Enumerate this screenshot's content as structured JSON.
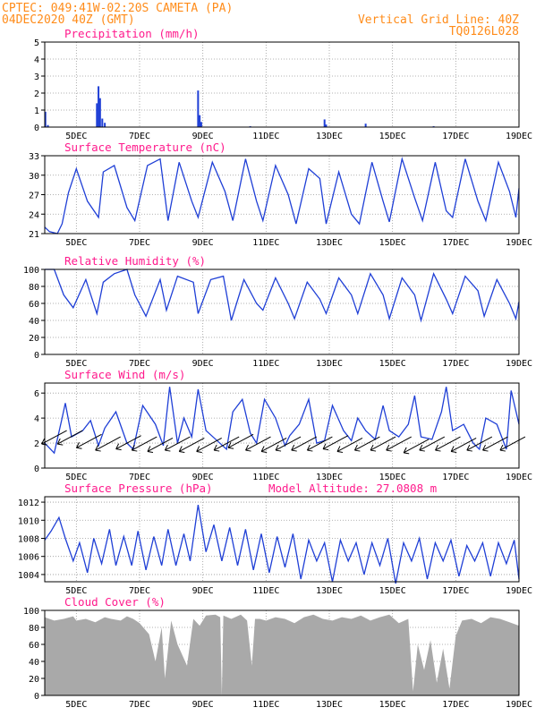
{
  "header": {
    "station": "CPTEC:   049:41W-02:20S   CAMETA (PA)",
    "init": "04DEC2020 40Z (GMT)",
    "grid_line": "Vertical Grid Line: 40Z",
    "code": "TQ0126L028"
  },
  "x_axis": {
    "start_day": 4.0,
    "end_day": 19.0,
    "tick_days": [
      5,
      7,
      9,
      11,
      13,
      15,
      17,
      19
    ],
    "tick_labels": [
      "5DEC",
      "7DEC",
      "9DEC",
      "11DEC",
      "13DEC",
      "15DEC",
      "17DEC",
      "19DEC"
    ]
  },
  "colors": {
    "line": "#1f3fd6",
    "cloud": "#a9a9a9",
    "precip": "#1f3fd6",
    "header": "#ff8c1a",
    "title": "#ff1a8c",
    "wind_arrow": "#000000"
  },
  "chart_data": [
    {
      "id": "precip",
      "type": "bar",
      "title": "Precipitation (mm/h)",
      "ylim": [
        0,
        5
      ],
      "yticks": [
        0,
        1,
        2,
        3,
        4,
        5
      ],
      "points": [
        [
          4.02,
          0.9
        ],
        [
          4.1,
          0.12
        ],
        [
          5.65,
          1.4
        ],
        [
          5.7,
          2.4
        ],
        [
          5.75,
          1.7
        ],
        [
          5.82,
          0.5
        ],
        [
          5.9,
          0.25
        ],
        [
          8.85,
          2.15
        ],
        [
          8.9,
          0.7
        ],
        [
          8.95,
          0.3
        ],
        [
          12.85,
          0.45
        ],
        [
          12.9,
          0.15
        ],
        [
          14.15,
          0.2
        ],
        [
          10.5,
          0.05
        ],
        [
          16.3,
          0.05
        ]
      ]
    },
    {
      "id": "temp",
      "type": "line",
      "title": "Surface Temperature (nC)",
      "ylim": [
        21,
        33
      ],
      "yticks": [
        21,
        24,
        27,
        30,
        33
      ],
      "x": [
        4.0,
        4.15,
        4.4,
        4.55,
        4.75,
        5.0,
        5.35,
        5.7,
        5.85,
        6.2,
        6.6,
        6.85,
        7.25,
        7.65,
        7.9,
        8.25,
        8.65,
        8.85,
        9.3,
        9.7,
        9.95,
        10.35,
        10.7,
        10.9,
        11.3,
        11.7,
        11.95,
        12.35,
        12.7,
        12.9,
        13.3,
        13.7,
        13.95,
        14.35,
        14.7,
        14.9,
        15.3,
        15.7,
        15.95,
        16.35,
        16.7,
        16.9,
        17.3,
        17.7,
        17.95,
        18.35,
        18.7,
        18.9,
        19.0
      ],
      "y": [
        22.0,
        21.3,
        21.0,
        22.5,
        27.3,
        31.0,
        26.0,
        23.5,
        30.5,
        31.5,
        25.0,
        23.0,
        31.5,
        32.5,
        23.0,
        32.0,
        26.0,
        23.5,
        32.0,
        27.5,
        23.0,
        32.5,
        26.0,
        23.0,
        31.5,
        27.0,
        22.5,
        31.0,
        29.5,
        22.5,
        30.5,
        24.0,
        22.5,
        32.0,
        26.0,
        22.8,
        32.5,
        26.5,
        23.0,
        32.0,
        24.5,
        23.5,
        32.5,
        26.0,
        23.0,
        32.0,
        27.5,
        23.5,
        28.0
      ]
    },
    {
      "id": "rh",
      "type": "line",
      "title": "Relative Humidity (%)",
      "ylim": [
        0,
        100
      ],
      "yticks": [
        0,
        20,
        40,
        60,
        80,
        100
      ],
      "x": [
        4.0,
        4.3,
        4.6,
        4.9,
        5.3,
        5.65,
        5.85,
        6.2,
        6.6,
        6.85,
        7.2,
        7.65,
        7.85,
        8.2,
        8.7,
        8.85,
        9.25,
        9.65,
        9.9,
        10.3,
        10.7,
        10.9,
        11.3,
        11.7,
        11.9,
        12.3,
        12.7,
        12.9,
        13.3,
        13.7,
        13.9,
        14.3,
        14.7,
        14.9,
        15.3,
        15.7,
        15.9,
        16.3,
        16.7,
        16.9,
        17.3,
        17.7,
        17.9,
        18.3,
        18.7,
        18.9,
        19.0
      ],
      "y": [
        100,
        100,
        70,
        55,
        88,
        48,
        85,
        95,
        100,
        70,
        45,
        88,
        52,
        92,
        85,
        48,
        88,
        92,
        40,
        88,
        60,
        52,
        90,
        60,
        42,
        85,
        65,
        48,
        90,
        70,
        48,
        95,
        70,
        42,
        90,
        70,
        40,
        95,
        65,
        48,
        92,
        75,
        45,
        88,
        60,
        42,
        62
      ]
    },
    {
      "id": "wind",
      "type": "line",
      "title": "Surface Wind (m/s)",
      "ylim": [
        0,
        6.8
      ],
      "yticks": [
        0,
        2,
        4,
        6
      ],
      "x": [
        4.0,
        4.3,
        4.55,
        4.65,
        4.85,
        5.2,
        5.45,
        5.7,
        5.9,
        6.25,
        6.6,
        6.8,
        7.1,
        7.5,
        7.75,
        7.95,
        8.2,
        8.4,
        8.65,
        8.85,
        9.1,
        9.45,
        9.75,
        9.95,
        10.25,
        10.5,
        10.7,
        10.95,
        11.3,
        11.6,
        11.75,
        12.05,
        12.35,
        12.6,
        12.85,
        13.1,
        13.45,
        13.7,
        13.9,
        14.15,
        14.45,
        14.7,
        14.9,
        15.2,
        15.5,
        15.7,
        15.9,
        16.25,
        16.55,
        16.7,
        16.9,
        17.25,
        17.55,
        17.75,
        17.95,
        18.3,
        18.6,
        18.75,
        19.0
      ],
      "y": [
        2.0,
        1.2,
        4.0,
        5.2,
        2.5,
        3.0,
        3.8,
        1.8,
        3.2,
        4.5,
        2.0,
        1.5,
        5.0,
        3.5,
        1.8,
        6.5,
        2.0,
        4.0,
        2.5,
        6.3,
        3.0,
        2.2,
        1.5,
        4.5,
        5.5,
        2.8,
        2.0,
        5.5,
        4.0,
        1.8,
        2.6,
        3.5,
        5.5,
        2.0,
        2.2,
        5.0,
        3.0,
        2.2,
        4.0,
        3.0,
        2.3,
        5.0,
        3.0,
        2.5,
        3.5,
        5.8,
        2.5,
        2.3,
        4.5,
        6.5,
        3.0,
        3.5,
        2.0,
        1.5,
        4.0,
        3.5,
        1.5,
        6.2,
        3.5
      ],
      "arrows": [
        [
          4.3,
          2.5
        ],
        [
          4.8,
          2.5
        ],
        [
          5.4,
          2.2
        ],
        [
          6.0,
          2.0
        ],
        [
          6.65,
          2.1
        ],
        [
          7.15,
          2.0
        ],
        [
          7.65,
          1.9
        ],
        [
          8.2,
          2.0
        ],
        [
          8.65,
          1.9
        ],
        [
          9.2,
          1.9
        ],
        [
          9.75,
          2.0
        ],
        [
          10.2,
          2.2
        ],
        [
          10.75,
          2.0
        ],
        [
          11.25,
          1.9
        ],
        [
          11.7,
          2.0
        ],
        [
          12.2,
          2.0
        ],
        [
          12.7,
          2.0
        ],
        [
          13.2,
          2.1
        ],
        [
          13.65,
          1.9
        ],
        [
          14.2,
          2.0
        ],
        [
          14.7,
          2.0
        ],
        [
          15.2,
          2.0
        ],
        [
          15.75,
          1.8
        ],
        [
          16.25,
          2.0
        ],
        [
          16.75,
          2.0
        ],
        [
          17.25,
          1.9
        ],
        [
          17.75,
          2.0
        ],
        [
          18.25,
          2.0
        ],
        [
          18.8,
          2.0
        ]
      ]
    },
    {
      "id": "pres",
      "type": "line",
      "title": "Surface Pressure (hPa)",
      "altitude_label": "Model Altitude: 27.0808 m",
      "ylim": [
        1003.2,
        1012.6
      ],
      "yticks": [
        1004,
        1006,
        1008,
        1010,
        1012
      ],
      "x": [
        4.0,
        4.2,
        4.45,
        4.65,
        4.9,
        5.1,
        5.35,
        5.55,
        5.8,
        6.05,
        6.25,
        6.5,
        6.75,
        6.95,
        7.2,
        7.45,
        7.7,
        7.9,
        8.15,
        8.4,
        8.6,
        8.85,
        9.1,
        9.35,
        9.6,
        9.85,
        10.1,
        10.35,
        10.6,
        10.85,
        11.1,
        11.35,
        11.6,
        11.85,
        12.1,
        12.35,
        12.6,
        12.85,
        13.1,
        13.35,
        13.6,
        13.85,
        14.1,
        14.35,
        14.6,
        14.85,
        15.1,
        15.35,
        15.6,
        15.85,
        16.1,
        16.35,
        16.6,
        16.85,
        17.1,
        17.35,
        17.6,
        17.85,
        18.1,
        18.35,
        18.6,
        18.85,
        19.0
      ],
      "y": [
        1007.8,
        1008.8,
        1010.3,
        1008.0,
        1005.5,
        1007.5,
        1004.2,
        1008.0,
        1005.2,
        1009.0,
        1005.0,
        1008.2,
        1005.0,
        1008.8,
        1004.5,
        1008.2,
        1005.0,
        1009.0,
        1005.0,
        1008.5,
        1005.5,
        1011.7,
        1006.5,
        1009.5,
        1005.5,
        1009.2,
        1005.0,
        1009.0,
        1004.5,
        1008.5,
        1004.2,
        1008.2,
        1004.8,
        1008.5,
        1003.5,
        1007.8,
        1005.5,
        1007.5,
        1003.2,
        1007.8,
        1005.5,
        1007.5,
        1004.0,
        1007.5,
        1005.0,
        1008.0,
        1003.0,
        1007.5,
        1005.5,
        1008.0,
        1003.5,
        1007.5,
        1005.5,
        1007.8,
        1003.8,
        1007.2,
        1005.5,
        1007.5,
        1003.8,
        1007.5,
        1005.2,
        1007.8,
        1003.5
      ]
    },
    {
      "id": "cloud",
      "type": "area",
      "title": "Cloud Cover (%)",
      "ylim": [
        0,
        100
      ],
      "yticks": [
        0,
        20,
        40,
        60,
        80,
        100
      ],
      "x": [
        4.0,
        4.3,
        4.6,
        4.9,
        5.0,
        5.3,
        5.6,
        5.9,
        6.1,
        6.4,
        6.6,
        6.8,
        7.0,
        7.3,
        7.5,
        7.7,
        7.8,
        8.0,
        8.2,
        8.5,
        8.7,
        8.9,
        9.1,
        9.4,
        9.55,
        9.6,
        9.65,
        9.9,
        10.2,
        10.4,
        10.55,
        10.65,
        10.8,
        11.0,
        11.3,
        11.6,
        11.9,
        12.2,
        12.5,
        12.8,
        13.1,
        13.4,
        13.7,
        14.0,
        14.3,
        14.6,
        14.9,
        15.2,
        15.5,
        15.65,
        15.8,
        16.0,
        16.2,
        16.4,
        16.6,
        16.8,
        17.0,
        17.2,
        17.5,
        17.8,
        18.1,
        18.4,
        18.7,
        19.0
      ],
      "y": [
        92,
        88,
        90,
        93,
        88,
        90,
        86,
        92,
        90,
        88,
        93,
        90,
        85,
        72,
        40,
        80,
        20,
        88,
        60,
        35,
        90,
        82,
        94,
        95,
        92,
        0,
        94,
        90,
        95,
        88,
        35,
        90,
        90,
        88,
        92,
        90,
        85,
        92,
        95,
        90,
        88,
        92,
        90,
        94,
        88,
        92,
        95,
        85,
        90,
        5,
        60,
        30,
        65,
        15,
        55,
        8,
        70,
        88,
        90,
        85,
        92,
        90,
        86,
        82
      ]
    }
  ]
}
